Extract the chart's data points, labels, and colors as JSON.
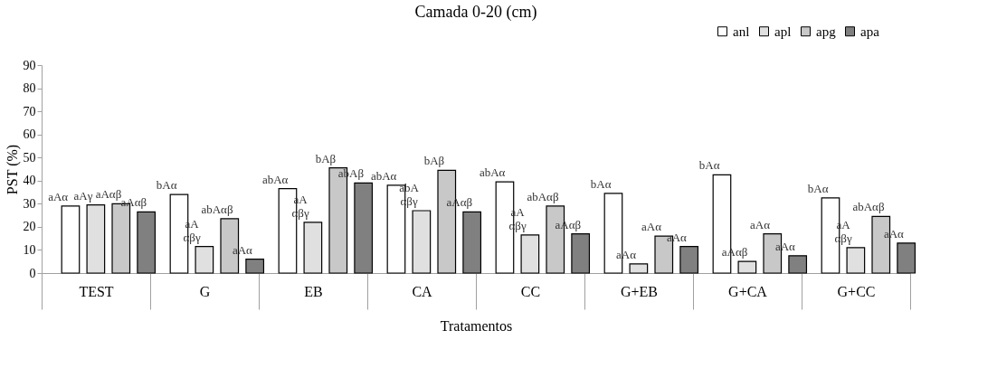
{
  "chart_data": {
    "type": "bar",
    "title": "Camada 0-20 (cm)",
    "xlabel": "Tratamentos",
    "ylabel": "PST (%)",
    "categories": [
      "TEST",
      "G",
      "EB",
      "CA",
      "CC",
      "G+EB",
      "G+CA",
      "G+CC"
    ],
    "series": [
      {
        "name": "anl",
        "color": "#ffffff",
        "values": [
          29,
          34,
          36.5,
          38,
          39.5,
          34.5,
          42.5,
          32.5
        ],
        "value_labels": [
          "aAα",
          "bAα",
          "abAα",
          "abAα",
          "abAα",
          "bAα",
          "bAα",
          "bAα"
        ]
      },
      {
        "name": "apl",
        "color": "#e0e0e0",
        "values": [
          29.5,
          11.5,
          22,
          27,
          16.5,
          4,
          5,
          11
        ],
        "value_labels": [
          "aAγ",
          "aA\nαβγ",
          "aA\nαβγ",
          "abA\nαβγ",
          "aA\nαβγ",
          "aAα",
          "aAαβ",
          "aA\nαβγ"
        ]
      },
      {
        "name": "apg",
        "color": "#c8c8c8",
        "values": [
          30,
          23.5,
          45.5,
          44.5,
          29,
          16,
          17,
          24.5
        ],
        "value_labels": [
          "aAαβ",
          "abAαβ",
          "bAβ",
          "bAβ",
          "abAαβ",
          "aAα",
          "aAα",
          "abAαβ"
        ]
      },
      {
        "name": "apa",
        "color": "#808080",
        "values": [
          26.5,
          6,
          39,
          26.5,
          17,
          11.5,
          7.5,
          13
        ],
        "value_labels": [
          "aAαβ",
          "aAα",
          "abAβ",
          "aAαβ",
          "aAαβ",
          "aAα",
          "aAα",
          "aAα"
        ]
      }
    ],
    "ylim": [
      0,
      90
    ],
    "yticks": [
      0,
      10,
      20,
      30,
      40,
      50,
      60,
      70,
      80,
      90
    ],
    "grid": false,
    "legend": "top right"
  }
}
